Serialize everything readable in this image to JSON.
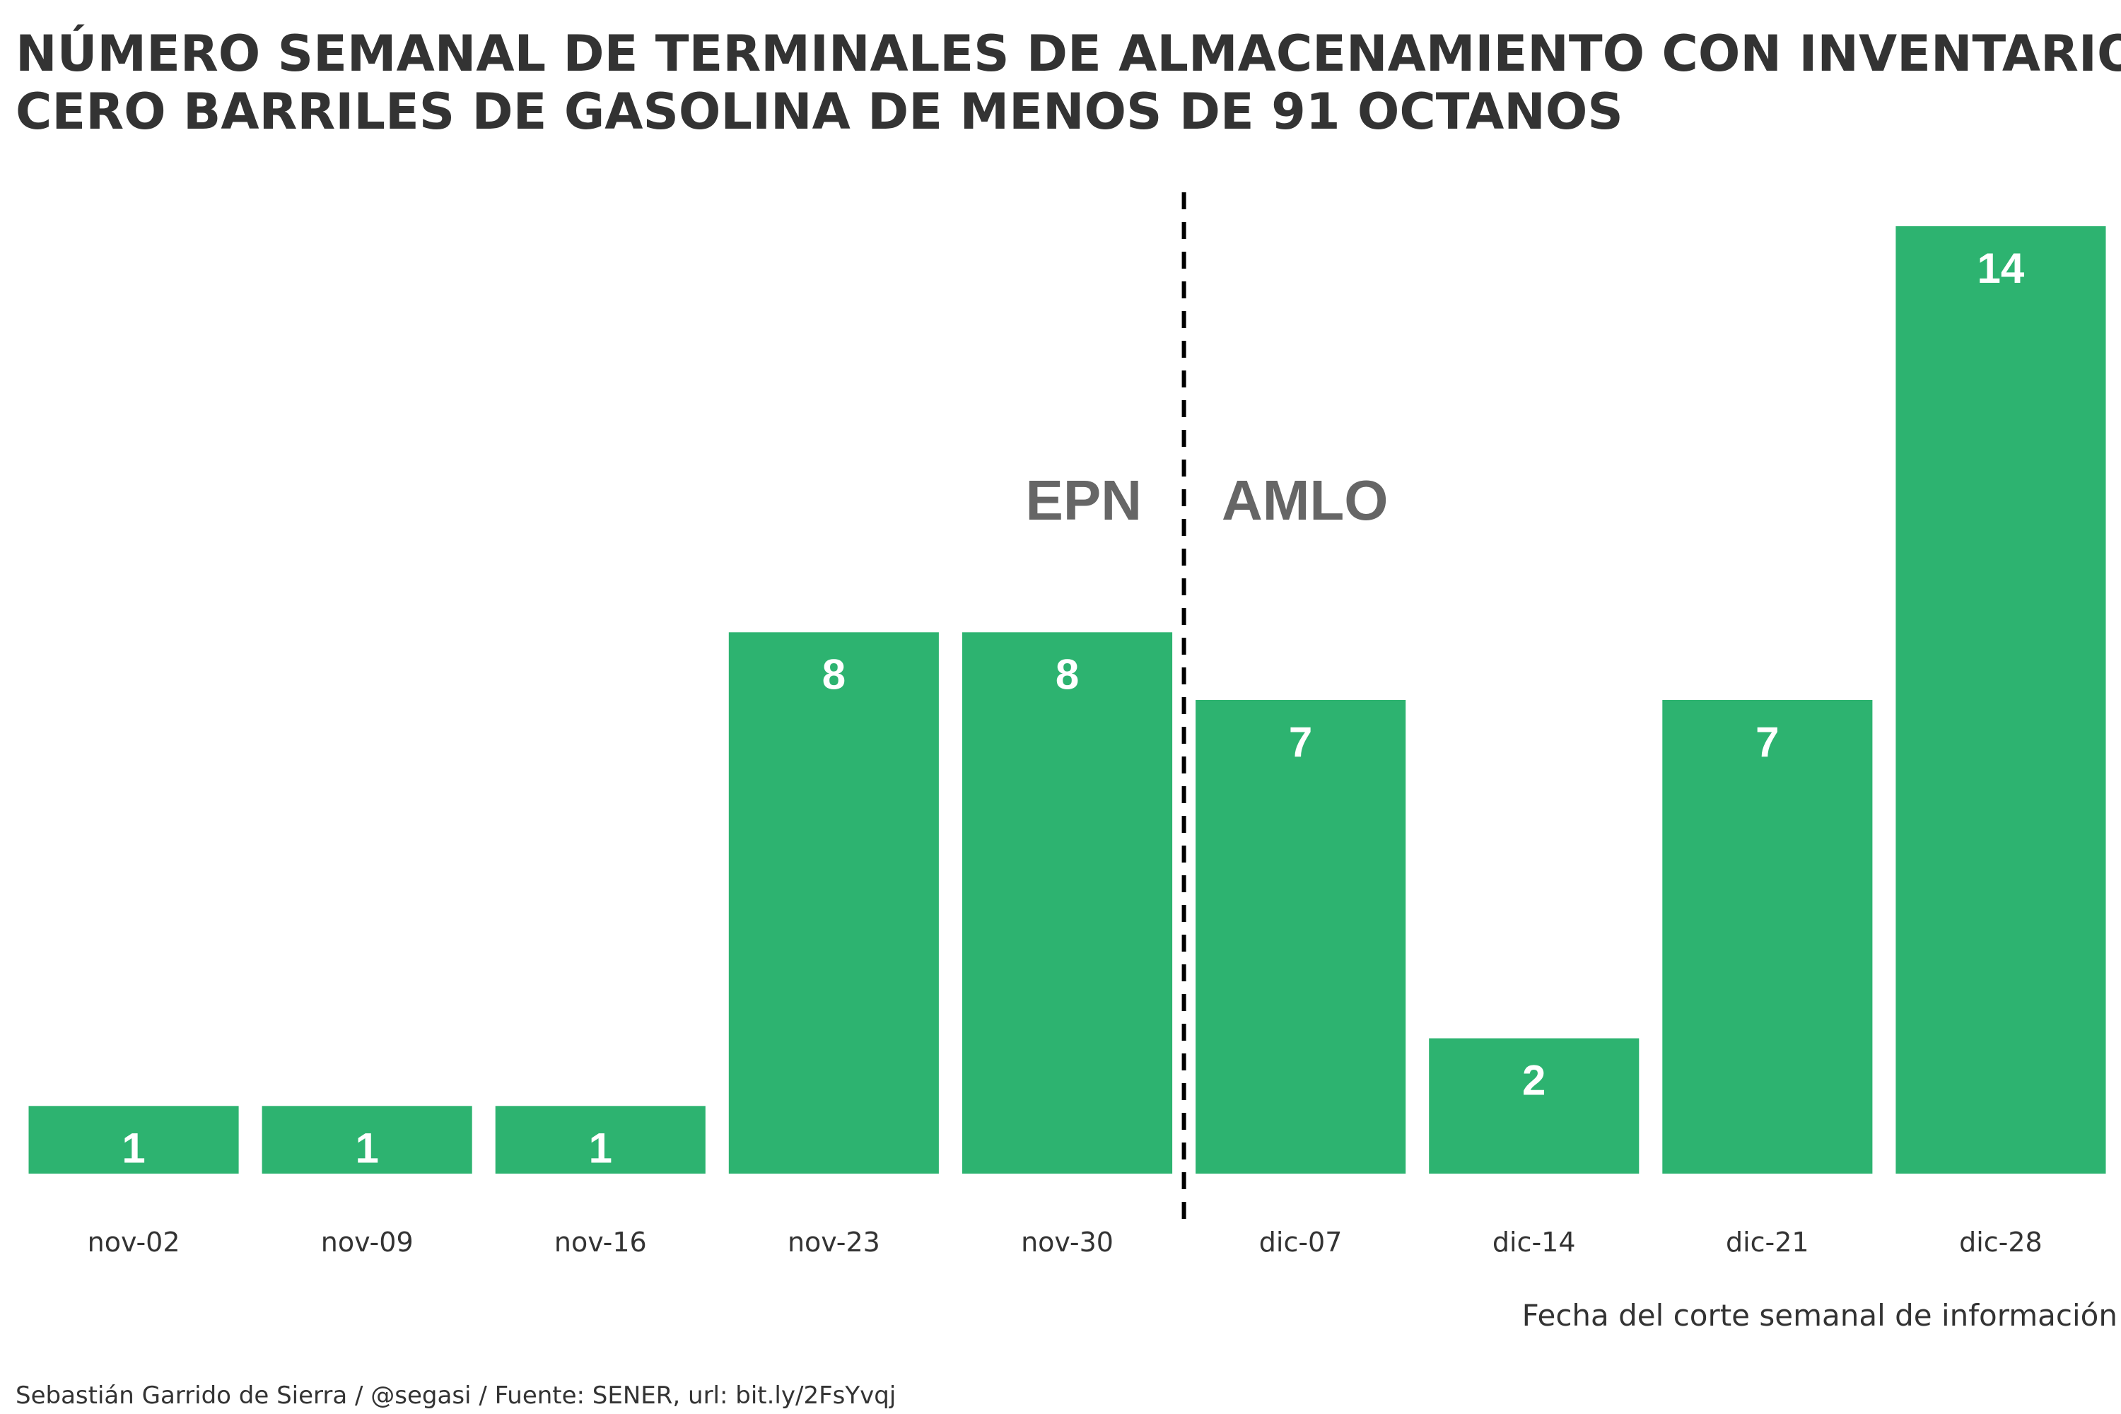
{
  "chart_data": {
    "type": "bar",
    "title_lines": [
      "NÚMERO SEMANAL DE TERMINALES DE ALMACENAMIENTO CON INVENTARIO DE",
      "CERO BARRILES DE GASOLINA DE MENOS DE 91 OCTANOS"
    ],
    "categories": [
      "nov-02",
      "nov-09",
      "nov-16",
      "nov-23",
      "nov-30",
      "dic-07",
      "dic-14",
      "dic-21",
      "dic-28"
    ],
    "values": [
      1,
      1,
      1,
      8,
      8,
      7,
      2,
      7,
      14
    ],
    "ylim": [
      0,
      14
    ],
    "xlabel": "Fecha del corte semanal de información",
    "ylabel": "",
    "grid": false,
    "divider_after": "nov-30",
    "periods": [
      {
        "label": "EPN",
        "side": "left"
      },
      {
        "label": "AMLO",
        "side": "right"
      }
    ],
    "caption": "Sebastián Garrido de Sierra / @segasi / Fuente: SENER, url: bit.ly/2FsYvqj",
    "bar_color": "#2db370"
  }
}
